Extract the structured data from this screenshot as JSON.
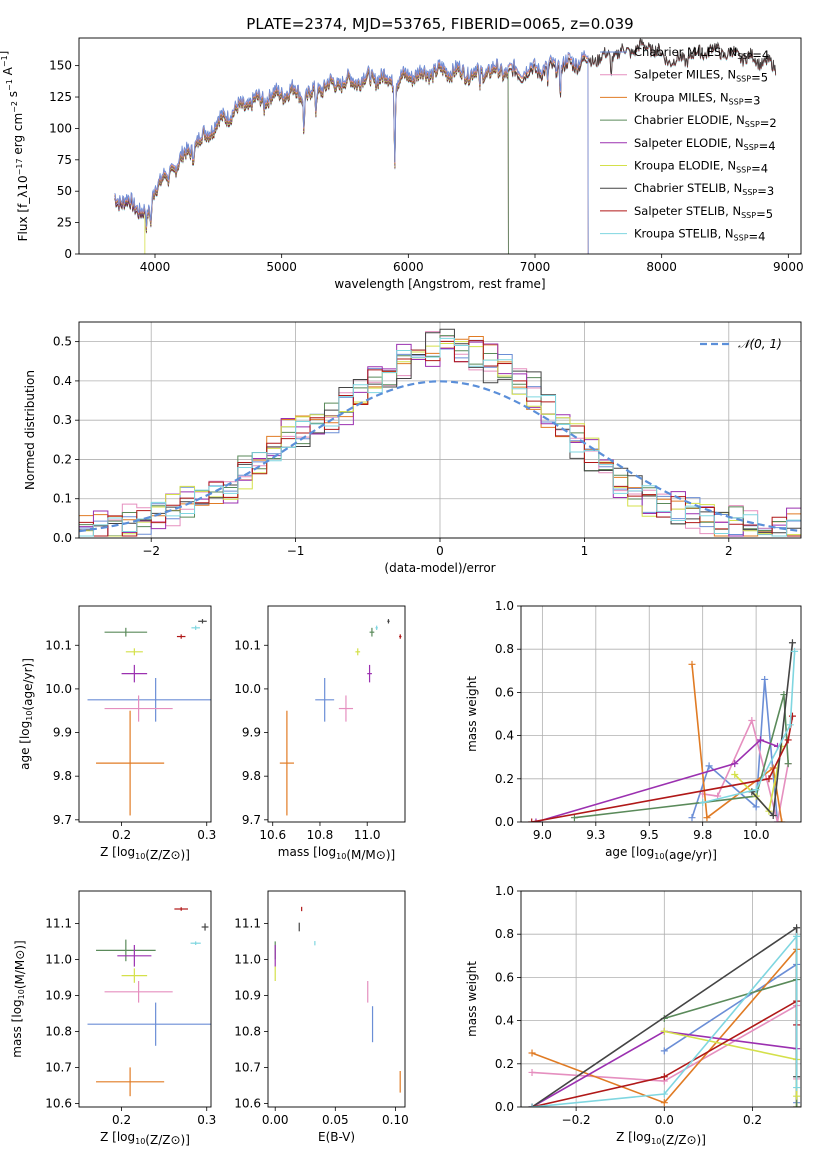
{
  "page_title": "PLATE=2374, MJD=53765, FIBERID=0065, z=0.039",
  "colors": {
    "Chabrier MILES": "#6b8ed6",
    "Salpeter MILES": "#e58fbf",
    "Kroupa MILES": "#e07b24",
    "Chabrier ELODIE": "#5a8a5a",
    "Salpeter ELODIE": "#9b30b0",
    "Kroupa ELODIE": "#d4e04a",
    "Chabrier STELIB": "#444444",
    "Salpeter STELIB": "#b01818",
    "Kroupa STELIB": "#7fd6e0",
    "gaussian": "#5b8fd9"
  },
  "chart_data": [
    {
      "id": "spectrum",
      "type": "line",
      "title": "PLATE=2374, MJD=53765, FIBERID=0065, z=0.039",
      "xlabel": "wavelength [Angstrom, rest frame]",
      "ylabel": "Flux [f_λ10^-17 erg cm^-2 s^-1 A^-1]",
      "xlim": [
        3400,
        9100
      ],
      "ylim": [
        0,
        172
      ],
      "xticks": [
        4000,
        5000,
        6000,
        7000,
        8000,
        9000
      ],
      "yticks": [
        0,
        25,
        50,
        75,
        100,
        125,
        150
      ],
      "legend_position": "top-right",
      "legend": [
        {
          "label": "Chabrier MILES, N_SSP=4"
        },
        {
          "label": "Salpeter MILES, N_SSP=5"
        },
        {
          "label": "Kroupa MILES, N_SSP=3"
        },
        {
          "label": "Chabrier ELODIE, N_SSP=2"
        },
        {
          "label": "Salpeter ELODIE, N_SSP=4"
        },
        {
          "label": "Kroupa ELODIE, N_SSP=4"
        },
        {
          "label": "Chabrier STELIB, N_SSP=3"
        },
        {
          "label": "Salpeter STELIB, N_SSP=5"
        },
        {
          "label": "Kroupa STELIB, N_SSP=4"
        }
      ],
      "continuum": {
        "x": [
          3680,
          3750,
          3850,
          3950,
          4000,
          4100,
          4200,
          4300,
          4400,
          4500,
          4600,
          4700,
          4800,
          4900,
          5000,
          5100,
          5200,
          5300,
          5400,
          5500,
          5600,
          5700,
          5800,
          5900,
          6000,
          6100,
          6200,
          6300,
          6400,
          6500,
          6600,
          6700,
          6800,
          6900,
          7000,
          7100,
          7200,
          7300,
          7400,
          7500,
          7600,
          7700,
          7800,
          7900,
          8000,
          8100,
          8200,
          8300,
          8400,
          8500,
          8600,
          8700,
          8800,
          8900
        ],
        "y": [
          45,
          42,
          38,
          30,
          55,
          62,
          75,
          85,
          95,
          105,
          112,
          118,
          122,
          125,
          128,
          130,
          125,
          132,
          135,
          137,
          138,
          140,
          140,
          137,
          142,
          143,
          145,
          146,
          145,
          144,
          145,
          146,
          145,
          145,
          147,
          148,
          150,
          152,
          155,
          158,
          160,
          163,
          165,
          168,
          160,
          155,
          158,
          162,
          165,
          162,
          160,
          158,
          155,
          150
        ]
      },
      "dips": [
        {
          "x": 3933,
          "y": 20
        },
        {
          "x": 3968,
          "y": 22
        },
        {
          "x": 4102,
          "y": 55
        },
        {
          "x": 4300,
          "y": 78
        },
        {
          "x": 4861,
          "y": 118
        },
        {
          "x": 5175,
          "y": 100
        },
        {
          "x": 5270,
          "y": 112
        },
        {
          "x": 5893,
          "y": 75
        },
        {
          "x": 6563,
          "y": 130
        },
        {
          "x": 7100,
          "y": 135
        },
        {
          "x": 7200,
          "y": 132
        },
        {
          "x": 7600,
          "y": 145
        }
      ],
      "cutoffs": [
        {
          "series": "Kroupa ELODIE",
          "x": 3920
        },
        {
          "series": "Chabrier ELODIE",
          "x": 6790
        },
        {
          "series": "Salpeter ELODIE",
          "x": 6790
        },
        {
          "series": "Kroupa ELODIE",
          "x": 6790
        },
        {
          "series": "Chabrier MILES",
          "x": 7420
        },
        {
          "series": "Salpeter MILES",
          "x": 7420
        },
        {
          "series": "Kroupa MILES",
          "x": 7420
        }
      ]
    },
    {
      "id": "residuals",
      "type": "histogram",
      "xlabel": "(data-model)/error",
      "ylabel": "Normed distribution",
      "xlim": [
        -2.5,
        2.5
      ],
      "ylim": [
        0,
        0.55
      ],
      "xticks": [
        -2,
        -1,
        0,
        1,
        2
      ],
      "yticks": [
        0.0,
        0.1,
        0.2,
        0.3,
        0.4,
        0.5
      ],
      "grid": true,
      "legend_position": "top-right",
      "gaussian_label": "𝒩(0, 1)",
      "bin_edges_start": -2.5,
      "bin_width": 0.1,
      "base_values": [
        0.02,
        0.02,
        0.03,
        0.04,
        0.05,
        0.06,
        0.07,
        0.09,
        0.1,
        0.12,
        0.14,
        0.17,
        0.19,
        0.22,
        0.25,
        0.27,
        0.29,
        0.31,
        0.34,
        0.37,
        0.4,
        0.43,
        0.45,
        0.47,
        0.48,
        0.48,
        0.48,
        0.47,
        0.45,
        0.43,
        0.4,
        0.37,
        0.33,
        0.29,
        0.25,
        0.21,
        0.17,
        0.14,
        0.12,
        0.1,
        0.08,
        0.07,
        0.06,
        0.05,
        0.04,
        0.04,
        0.03,
        0.03,
        0.02,
        0.02
      ]
    },
    {
      "id": "age_vs_z",
      "type": "scatter",
      "xlabel": "Z [log10(Z/Z⊙)]",
      "ylabel": "age [log10(age/yr)]",
      "xlim": [
        0.15,
        0.305
      ],
      "ylim": [
        9.695,
        10.19
      ],
      "xticks": [
        0.2,
        0.3
      ],
      "yticks": [
        9.7,
        9.8,
        9.9,
        10.0,
        10.1
      ],
      "points": [
        {
          "series": "Chabrier MILES",
          "x": 0.24,
          "y": 9.975,
          "xerr": 0.08,
          "yerr": 0.05
        },
        {
          "series": "Salpeter MILES",
          "x": 0.22,
          "y": 9.955,
          "xerr": 0.04,
          "yerr": 0.03
        },
        {
          "series": "Kroupa MILES",
          "x": 0.21,
          "y": 9.83,
          "xerr": 0.04,
          "yerr": 0.12
        },
        {
          "series": "Chabrier ELODIE",
          "x": 0.205,
          "y": 10.13,
          "xerr": 0.025,
          "yerr": 0.01
        },
        {
          "series": "Salpeter ELODIE",
          "x": 0.215,
          "y": 10.035,
          "xerr": 0.015,
          "yerr": 0.02
        },
        {
          "series": "Kroupa ELODIE",
          "x": 0.215,
          "y": 10.085,
          "xerr": 0.01,
          "yerr": 0.008
        },
        {
          "series": "Chabrier STELIB",
          "x": 0.295,
          "y": 10.155,
          "xerr": 0.005,
          "yerr": 0.005
        },
        {
          "series": "Salpeter STELIB",
          "x": 0.27,
          "y": 10.12,
          "xerr": 0.005,
          "yerr": 0.005
        },
        {
          "series": "Kroupa STELIB",
          "x": 0.287,
          "y": 10.14,
          "xerr": 0.005,
          "yerr": 0.005
        }
      ]
    },
    {
      "id": "age_vs_mass",
      "type": "scatter",
      "xlabel": "mass [log10(M/M⊙)]",
      "ylabel": "",
      "xlim": [
        10.58,
        11.16
      ],
      "ylim": [
        9.695,
        10.19
      ],
      "xticks": [
        10.6,
        10.8,
        11.0
      ],
      "yticks": [
        9.7,
        9.8,
        9.9,
        10.0,
        10.1
      ],
      "points": [
        {
          "series": "Chabrier MILES",
          "x": 10.82,
          "y": 9.975,
          "xerr": 0.04,
          "yerr": 0.05
        },
        {
          "series": "Salpeter MILES",
          "x": 10.91,
          "y": 9.955,
          "xerr": 0.03,
          "yerr": 0.03
        },
        {
          "series": "Kroupa MILES",
          "x": 10.66,
          "y": 9.83,
          "xerr": 0.03,
          "yerr": 0.12
        },
        {
          "series": "Chabrier ELODIE",
          "x": 11.02,
          "y": 10.13,
          "xerr": 0.01,
          "yerr": 0.01
        },
        {
          "series": "Salpeter ELODIE",
          "x": 11.01,
          "y": 10.035,
          "xerr": 0.01,
          "yerr": 0.02
        },
        {
          "series": "Kroupa ELODIE",
          "x": 10.96,
          "y": 10.085,
          "xerr": 0.01,
          "yerr": 0.008
        },
        {
          "series": "Chabrier STELIB",
          "x": 11.09,
          "y": 10.155,
          "xerr": 0.005,
          "yerr": 0.005
        },
        {
          "series": "Salpeter STELIB",
          "x": 11.14,
          "y": 10.12,
          "xerr": 0.005,
          "yerr": 0.005
        },
        {
          "series": "Kroupa STELIB",
          "x": 11.04,
          "y": 10.14,
          "xerr": 0.005,
          "yerr": 0.005
        }
      ]
    },
    {
      "id": "weight_vs_age",
      "type": "line",
      "xlabel": "age [log10(age/yr)]",
      "ylabel": "mass weight",
      "xlim": [
        8.9,
        10.21
      ],
      "ylim": [
        0,
        1.0
      ],
      "xticks": [
        9.0,
        9.25,
        9.5,
        9.75,
        10.0
      ],
      "yticks": [
        0.0,
        0.2,
        0.4,
        0.6,
        0.8,
        1.0
      ],
      "grid": true,
      "series": [
        {
          "name": "Chabrier MILES",
          "x": [
            9.7,
            9.78,
            10.0,
            10.04,
            10.1
          ],
          "y": [
            0.02,
            0.26,
            0.07,
            0.66,
            0.0
          ]
        },
        {
          "name": "Salpeter MILES",
          "x": [
            9.75,
            9.82,
            9.98,
            10.1,
            10.15
          ],
          "y": [
            0.13,
            0.12,
            0.47,
            0.0,
            0.27
          ]
        },
        {
          "name": "Kroupa MILES",
          "x": [
            9.7,
            9.77,
            10.08,
            10.12
          ],
          "y": [
            0.73,
            0.02,
            0.25,
            0.0
          ]
        },
        {
          "name": "Chabrier ELODIE",
          "x": [
            9.15,
            10.0,
            10.13,
            10.15
          ],
          "y": [
            0.02,
            0.12,
            0.59,
            0.27
          ]
        },
        {
          "name": "Salpeter ELODIE",
          "x": [
            8.97,
            9.9,
            10.02,
            10.1
          ],
          "y": [
            0.0,
            0.27,
            0.38,
            0.35
          ]
        },
        {
          "name": "Kroupa ELODIE",
          "x": [
            9.9,
            10.0,
            10.06,
            10.12
          ],
          "y": [
            0.22,
            0.12,
            0.05,
            0.35
          ]
        },
        {
          "name": "Chabrier STELIB",
          "x": [
            9.98,
            10.08,
            10.17
          ],
          "y": [
            0.14,
            0.03,
            0.83
          ]
        },
        {
          "name": "Salpeter STELIB",
          "x": [
            8.95,
            10.06,
            10.15,
            10.17
          ],
          "y": [
            0.0,
            0.2,
            0.38,
            0.49
          ]
        },
        {
          "name": "Kroupa STELIB",
          "x": [
            9.75,
            10.0,
            10.16,
            10.18
          ],
          "y": [
            0.09,
            0.15,
            0.45,
            0.79
          ]
        }
      ]
    },
    {
      "id": "mass_vs_z",
      "type": "scatter",
      "xlabel": "Z [log10(Z/Z⊙)]",
      "ylabel": "mass [log10(M/M⊙)]",
      "xlim": [
        0.15,
        0.305
      ],
      "ylim": [
        10.59,
        11.19
      ],
      "xticks": [
        0.2,
        0.3
      ],
      "yticks": [
        10.6,
        10.7,
        10.8,
        10.9,
        11.0,
        11.1
      ],
      "points": [
        {
          "series": "Chabrier MILES",
          "x": 0.24,
          "y": 10.82,
          "xerr": 0.08,
          "yerr": 0.06
        },
        {
          "series": "Salpeter MILES",
          "x": 0.22,
          "y": 10.91,
          "xerr": 0.04,
          "yerr": 0.03
        },
        {
          "series": "Kroupa MILES",
          "x": 0.21,
          "y": 10.66,
          "xerr": 0.04,
          "yerr": 0.04
        },
        {
          "series": "Chabrier ELODIE",
          "x": 0.205,
          "y": 11.025,
          "xerr": 0.035,
          "yerr": 0.03
        },
        {
          "series": "Salpeter ELODIE",
          "x": 0.215,
          "y": 11.01,
          "xerr": 0.02,
          "yerr": 0.03
        },
        {
          "series": "Kroupa ELODIE",
          "x": 0.215,
          "y": 10.955,
          "xerr": 0.015,
          "yerr": 0.02
        },
        {
          "series": "Chabrier STELIB",
          "x": 0.298,
          "y": 11.09,
          "xerr": 0.004,
          "yerr": 0.01
        },
        {
          "series": "Salpeter STELIB",
          "x": 0.27,
          "y": 11.14,
          "xerr": 0.008,
          "yerr": 0.005
        },
        {
          "series": "Kroupa STELIB",
          "x": 0.287,
          "y": 11.045,
          "xerr": 0.006,
          "yerr": 0.005
        }
      ]
    },
    {
      "id": "mass_vs_ebv",
      "type": "scatter",
      "xlabel": "E(B-V)",
      "ylabel": "",
      "xlim": [
        -0.006,
        0.108
      ],
      "ylim": [
        10.59,
        11.19
      ],
      "xticks": [
        0.0,
        0.05,
        0.1
      ],
      "yticks": [
        10.6,
        10.7,
        10.8,
        10.9,
        11.0,
        11.1
      ],
      "points": [
        {
          "series": "Chabrier MILES",
          "x": 0.081,
          "y": 10.82,
          "xerr": 0,
          "yerr": 0.05
        },
        {
          "series": "Salpeter MILES",
          "x": 0.077,
          "y": 10.91,
          "xerr": 0,
          "yerr": 0.03
        },
        {
          "series": "Kroupa MILES",
          "x": 0.104,
          "y": 10.66,
          "xerr": 0,
          "yerr": 0.03
        },
        {
          "series": "Chabrier ELODIE",
          "x": 0.0,
          "y": 11.025,
          "xerr": 0,
          "yerr": 0.025
        },
        {
          "series": "Salpeter ELODIE",
          "x": 0.0,
          "y": 11.01,
          "xerr": 0,
          "yerr": 0.03
        },
        {
          "series": "Kroupa ELODIE",
          "x": 0.0,
          "y": 10.96,
          "xerr": 0,
          "yerr": 0.02
        },
        {
          "series": "Chabrier STELIB",
          "x": 0.02,
          "y": 11.09,
          "xerr": 0,
          "yerr": 0.012
        },
        {
          "series": "Salpeter STELIB",
          "x": 0.022,
          "y": 11.14,
          "xerr": 0,
          "yerr": 0.006
        },
        {
          "series": "Kroupa STELIB",
          "x": 0.033,
          "y": 11.045,
          "xerr": 0,
          "yerr": 0.006
        }
      ]
    },
    {
      "id": "weight_vs_z",
      "type": "line",
      "xlabel": "Z [log10(Z/Z⊙)]",
      "ylabel": "mass weight",
      "xlim": [
        -0.325,
        0.31
      ],
      "ylim": [
        0,
        1.0
      ],
      "xticks": [
        -0.2,
        0.0,
        0.2
      ],
      "yticks": [
        0.0,
        0.2,
        0.4,
        0.6,
        0.8,
        1.0
      ],
      "grid": true,
      "series": [
        {
          "name": "Chabrier MILES",
          "x": [
            0.0,
            0.3,
            0.3
          ],
          "y": [
            0.26,
            0.66,
            0.02
          ]
        },
        {
          "name": "Salpeter MILES",
          "x": [
            -0.3,
            0.0,
            0.3,
            0.3
          ],
          "y": [
            0.16,
            0.12,
            0.47,
            0.13
          ]
        },
        {
          "name": "Kroupa MILES",
          "x": [
            -0.3,
            0.0,
            0.3,
            0.3
          ],
          "y": [
            0.25,
            0.02,
            0.73,
            0.0
          ]
        },
        {
          "name": "Chabrier ELODIE",
          "x": [
            0.0,
            0.3,
            0.3
          ],
          "y": [
            0.41,
            0.59,
            0.0
          ]
        },
        {
          "name": "Salpeter ELODIE",
          "x": [
            -0.3,
            0.0,
            0.3,
            0.3
          ],
          "y": [
            0.0,
            0.35,
            0.27,
            0.38
          ]
        },
        {
          "name": "Kroupa ELODIE",
          "x": [
            0.0,
            0.3,
            0.3
          ],
          "y": [
            0.35,
            0.22,
            0.05
          ]
        },
        {
          "name": "Chabrier STELIB",
          "x": [
            -0.3,
            0.3,
            0.3
          ],
          "y": [
            0.0,
            0.83,
            0.14
          ]
        },
        {
          "name": "Salpeter STELIB",
          "x": [
            -0.3,
            0.0,
            0.3,
            0.3
          ],
          "y": [
            0.0,
            0.14,
            0.49,
            0.38
          ]
        },
        {
          "name": "Kroupa STELIB",
          "x": [
            -0.3,
            0.0,
            0.3,
            0.3
          ],
          "y": [
            0.0,
            0.06,
            0.79,
            0.09
          ]
        }
      ]
    }
  ]
}
